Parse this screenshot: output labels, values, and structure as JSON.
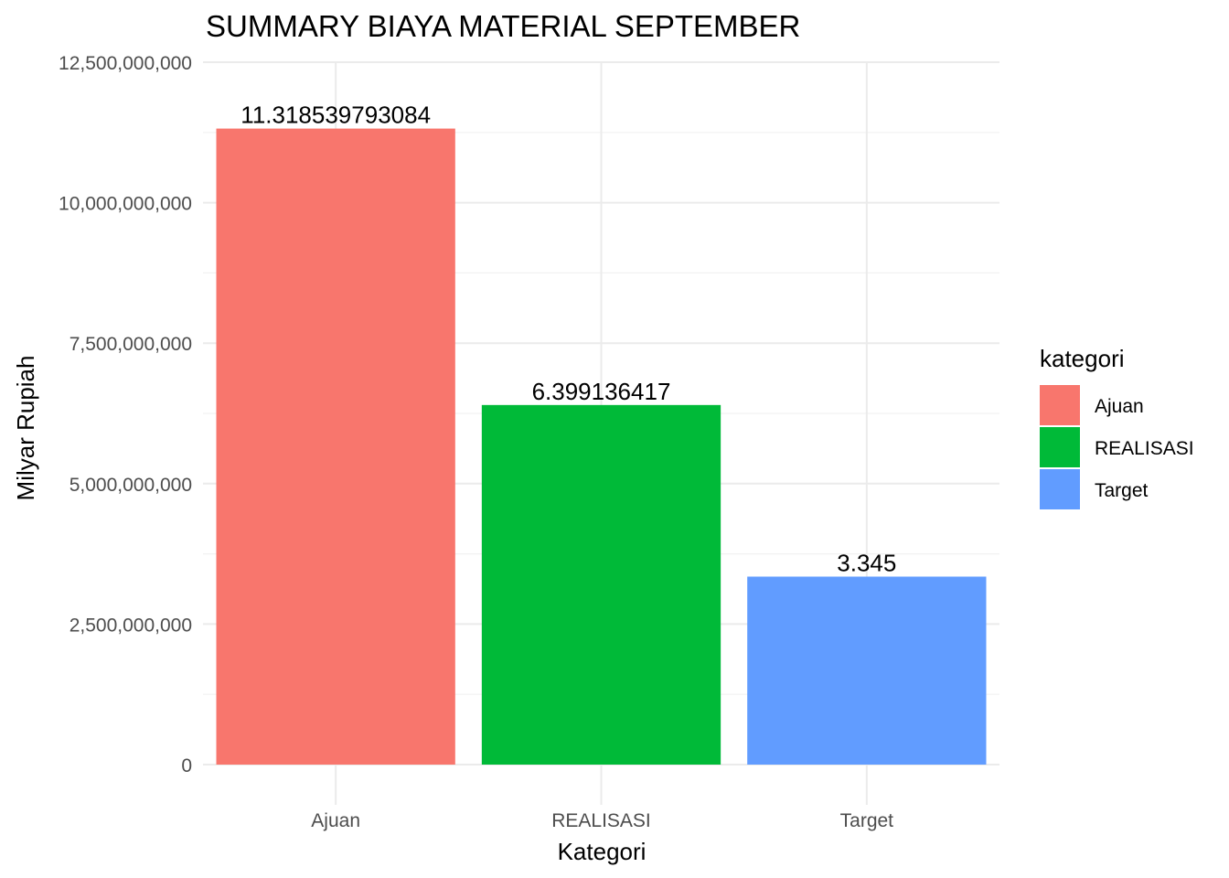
{
  "chart_data": {
    "type": "bar",
    "title": "SUMMARY BIAYA MATERIAL SEPTEMBER",
    "xlabel": "Kategori",
    "ylabel": "Milyar Rupiah",
    "categories": [
      "Ajuan",
      "REALISASI",
      "Target"
    ],
    "values": [
      11318539793,
      6399136417,
      3345000000
    ],
    "data_labels": [
      "11.318539793084",
      "6.399136417",
      "3.345"
    ],
    "colors": [
      "#F8766D",
      "#00BA38",
      "#619CFF"
    ],
    "ylim": [
      0,
      12500000000
    ],
    "y_ticks": [
      0,
      2500000000,
      5000000000,
      7500000000,
      10000000000,
      12500000000
    ],
    "y_tick_labels": [
      "0",
      "2,500,000,000",
      "5,000,000,000",
      "7,500,000,000",
      "10,000,000,000",
      "12,500,000,000"
    ],
    "grid": true,
    "legend": {
      "title": "kategori",
      "position": "right",
      "entries": [
        "Ajuan",
        "REALISASI",
        "Target"
      ]
    }
  }
}
